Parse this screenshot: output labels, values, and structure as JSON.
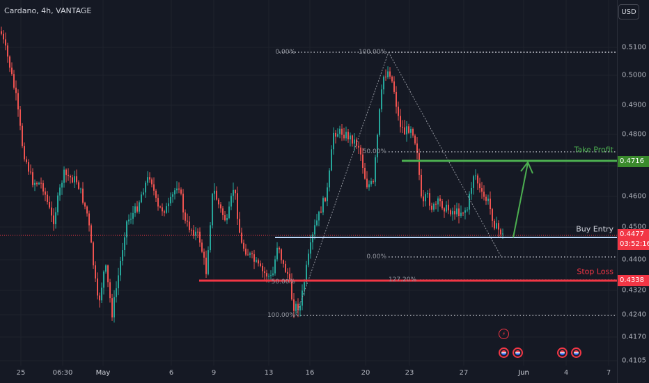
{
  "symbol_title": "Cardano, 4h, VANTAGE",
  "currency_button": "USD",
  "y_axis_ticks": [
    "0.5100",
    "0.5000",
    "0.4900",
    "0.4800",
    "0.4600",
    "0.4500",
    "0.4400",
    "0.4320",
    "0.4240",
    "0.4170",
    "0.4105"
  ],
  "x_axis_ticks": [
    "25",
    "06:30",
    "May",
    "6",
    "9",
    "13",
    "16",
    "20",
    "23",
    "27",
    "Jun",
    "4",
    "7"
  ],
  "price_tags": {
    "take_profit": "0.4716",
    "current_price": "0.4477",
    "countdown": "03:52:16",
    "stop_loss": "0.4338"
  },
  "annotations": {
    "take_profit": "Take Profit",
    "buy_entry": "Buy Entry",
    "stop_loss": "Stop Loss"
  },
  "fib_levels": {
    "upper_top": "0.00%",
    "upper_peak": "100.00%",
    "upper_mid": "50.00%",
    "upper_bottom": "0.00%",
    "lower_mid": "50.00%",
    "lower_ext": "127.20%",
    "lower_base": "100.00%"
  },
  "colors": {
    "bull": "#26a69a",
    "bear": "#ef5350",
    "take_profit": "#4caf50",
    "stop_loss": "#f23645",
    "entry": "#bbd9fb",
    "background": "#151924"
  },
  "event_icons": [
    "lightning-icon",
    "us-flag-icon",
    "us-flag-icon",
    "us-flag-icon",
    "us-flag-icon"
  ]
}
